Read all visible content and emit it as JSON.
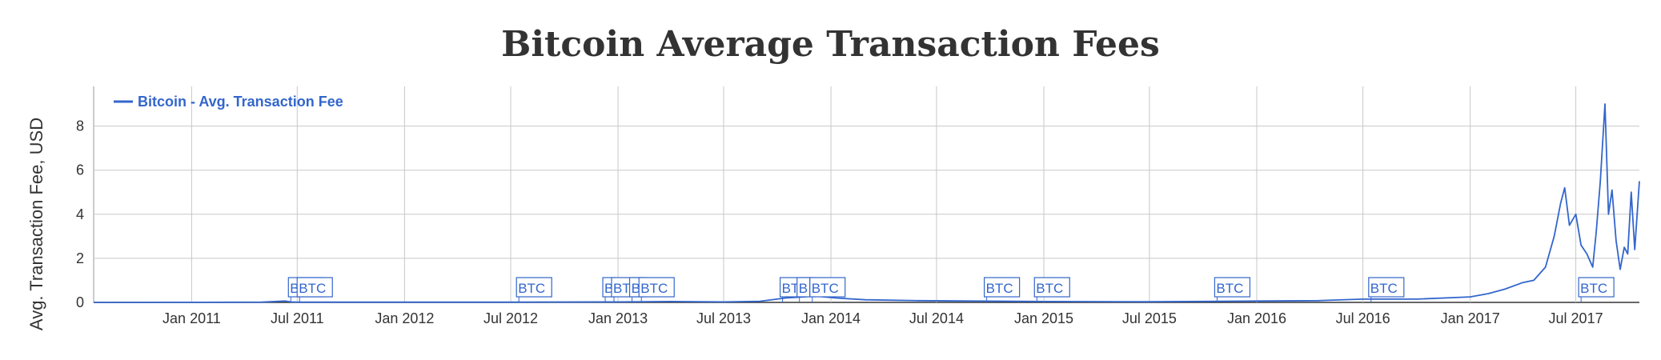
{
  "chart_data": {
    "type": "line",
    "title": "Bitcoin Average Transaction Fees",
    "xlabel": "",
    "ylabel": "Avg. Transaction Fee, USD",
    "x_range": [
      "2010-07-17",
      "2017-10-18"
    ],
    "ylim": [
      0,
      9.8
    ],
    "grid": true,
    "legend": "top-left",
    "color": "#3366cc",
    "x_ticks": [
      {
        "date": "2011-01-01",
        "label": "Jan 2011"
      },
      {
        "date": "2011-07-01",
        "label": "Jul 2011"
      },
      {
        "date": "2012-01-01",
        "label": "Jan 2012"
      },
      {
        "date": "2012-07-01",
        "label": "Jul 2012"
      },
      {
        "date": "2013-01-01",
        "label": "Jan 2013"
      },
      {
        "date": "2013-07-01",
        "label": "Jul 2013"
      },
      {
        "date": "2014-01-01",
        "label": "Jan 2014"
      },
      {
        "date": "2014-07-01",
        "label": "Jul 2014"
      },
      {
        "date": "2015-01-01",
        "label": "Jan 2015"
      },
      {
        "date": "2015-07-01",
        "label": "Jul 2015"
      },
      {
        "date": "2016-01-01",
        "label": "Jan 2016"
      },
      {
        "date": "2016-07-01",
        "label": "Jul 2016"
      },
      {
        "date": "2017-01-01",
        "label": "Jan 2017"
      },
      {
        "date": "2017-07-01",
        "label": "Jul 2017"
      }
    ],
    "y_ticks": [
      0,
      2,
      4,
      6,
      8
    ],
    "series": [
      {
        "name": "Bitcoin - Avg. Transaction Fee",
        "x": [
          "2010-07-17",
          "2011-01-01",
          "2011-05-01",
          "2011-06-10",
          "2011-06-20",
          "2011-07-01",
          "2011-08-01",
          "2012-01-01",
          "2012-07-01",
          "2013-01-01",
          "2013-04-01",
          "2013-07-01",
          "2013-09-01",
          "2013-10-15",
          "2013-11-15",
          "2013-12-05",
          "2013-12-20",
          "2014-01-10",
          "2014-03-01",
          "2014-06-01",
          "2014-09-01",
          "2015-01-01",
          "2015-07-01",
          "2016-01-01",
          "2016-04-15",
          "2016-07-01",
          "2016-10-01",
          "2017-01-01",
          "2017-02-01",
          "2017-03-01",
          "2017-04-01",
          "2017-04-20",
          "2017-05-10",
          "2017-05-25",
          "2017-06-05",
          "2017-06-12",
          "2017-06-20",
          "2017-07-01",
          "2017-07-10",
          "2017-07-20",
          "2017-07-30",
          "2017-08-05",
          "2017-08-12",
          "2017-08-20",
          "2017-08-26",
          "2017-09-01",
          "2017-09-08",
          "2017-09-15",
          "2017-09-22",
          "2017-09-28",
          "2017-10-04",
          "2017-10-10",
          "2017-10-18"
        ],
        "values": [
          0.0,
          0.005,
          0.01,
          0.06,
          0.02,
          0.01,
          0.01,
          0.01,
          0.01,
          0.02,
          0.04,
          0.02,
          0.05,
          0.2,
          0.25,
          0.3,
          0.25,
          0.2,
          0.12,
          0.08,
          0.06,
          0.04,
          0.03,
          0.06,
          0.08,
          0.15,
          0.15,
          0.25,
          0.4,
          0.6,
          0.9,
          1.0,
          1.6,
          3.0,
          4.5,
          5.2,
          3.5,
          4.0,
          2.6,
          2.2,
          1.6,
          3.2,
          5.5,
          9.0,
          4.0,
          5.1,
          2.8,
          1.5,
          2.5,
          2.2,
          5.0,
          2.4,
          5.5
        ]
      }
    ],
    "annotations": [
      {
        "date": "2011-06-20",
        "label": "BTC"
      },
      {
        "date": "2011-07-05",
        "label": "BTC"
      },
      {
        "date": "2012-07-15",
        "label": "BTC"
      },
      {
        "date": "2012-12-10",
        "label": "B"
      },
      {
        "date": "2012-12-25",
        "label": "BTC"
      },
      {
        "date": "2013-01-25",
        "label": "B"
      },
      {
        "date": "2013-02-10",
        "label": "BTC"
      },
      {
        "date": "2013-10-10",
        "label": "BTC"
      },
      {
        "date": "2013-11-08",
        "label": "B"
      },
      {
        "date": "2013-11-30",
        "label": "BTC"
      },
      {
        "date": "2014-09-25",
        "label": "BTC"
      },
      {
        "date": "2014-12-20",
        "label": "BTC"
      },
      {
        "date": "2015-10-25",
        "label": "BTC"
      },
      {
        "date": "2016-07-15",
        "label": "BTC"
      },
      {
        "date": "2017-07-10",
        "label": "BTC"
      }
    ]
  }
}
